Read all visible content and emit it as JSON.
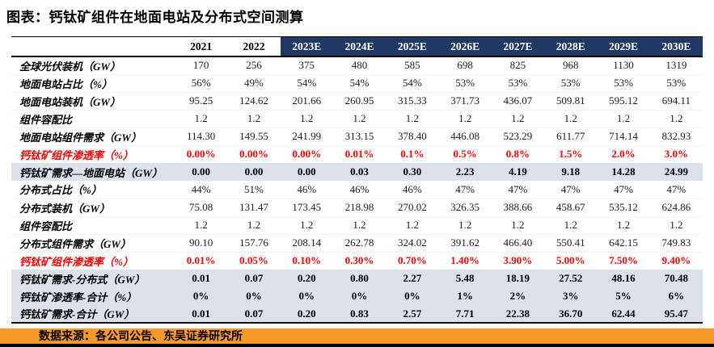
{
  "title": "图表：钙钛矿组件在地面电站及分布式空间测算",
  "source": {
    "text": "数据来源：各公司公告、东吴证券研究所"
  },
  "colors": {
    "header_navy": "#1F3864",
    "red": "#FF0000",
    "highlight_row_bg": "#DCE1EA",
    "source_bar_orange": "#F8992B"
  },
  "table": {
    "columns": [
      "2021",
      "2022",
      "2023E",
      "2024E",
      "2025E",
      "2026E",
      "2027E",
      "2028E",
      "2029E",
      "2030E"
    ],
    "navy_columns_start_index": 2,
    "rows": [
      {
        "label": "全球光伏装机（GW）",
        "style": "normal",
        "values": [
          "170",
          "256",
          "375",
          "480",
          "585",
          "698",
          "825",
          "968",
          "1130",
          "1319"
        ]
      },
      {
        "label": "地面电站占比（%）",
        "style": "normal",
        "values": [
          "56%",
          "49%",
          "54%",
          "54%",
          "54%",
          "53%",
          "53%",
          "53%",
          "53%",
          "53%"
        ]
      },
      {
        "label": "地面电站装机（GW）",
        "style": "normal",
        "values": [
          "95.25",
          "124.62",
          "201.66",
          "260.95",
          "315.33",
          "371.73",
          "436.07",
          "509.81",
          "595.12",
          "694.11"
        ]
      },
      {
        "label": "组件容配比",
        "style": "normal",
        "values": [
          "1.2",
          "1.2",
          "1.2",
          "1.2",
          "1.2",
          "1.2",
          "1.2",
          "1.2",
          "1.2",
          "1.2"
        ]
      },
      {
        "label": "地面电站组件需求（GW）",
        "style": "normal",
        "values": [
          "114.30",
          "149.55",
          "241.99",
          "313.15",
          "378.40",
          "446.08",
          "523.29",
          "611.77",
          "714.14",
          "832.93"
        ]
      },
      {
        "label": "钙钛矿组件渗透率（%）",
        "style": "red",
        "values": [
          "0.00%",
          "0.00%",
          "0.00%",
          "0.01%",
          "0.1%",
          "0.5%",
          "0.8%",
          "1.5%",
          "2.0%",
          "3.0%"
        ]
      },
      {
        "label": "钙钛矿需求—地面电站（GW）",
        "style": "highlight",
        "values": [
          "0.00",
          "0.00",
          "0.00",
          "0.03",
          "0.30",
          "2.23",
          "4.19",
          "9.18",
          "14.28",
          "24.99"
        ]
      },
      {
        "label": "分布式占比（%）",
        "style": "normal",
        "values": [
          "44%",
          "51%",
          "46%",
          "46%",
          "46%",
          "47%",
          "47%",
          "47%",
          "47%",
          "47%"
        ]
      },
      {
        "label": "分布式装机（GW）",
        "style": "normal",
        "values": [
          "75.08",
          "131.47",
          "173.45",
          "218.98",
          "270.02",
          "326.35",
          "388.66",
          "458.67",
          "535.12",
          "624.86"
        ]
      },
      {
        "label": "组件容配比",
        "style": "normal",
        "values": [
          "1.2",
          "1.2",
          "1.2",
          "1.2",
          "1.2",
          "1.2",
          "1.2",
          "1.2",
          "1.2",
          "1.2"
        ]
      },
      {
        "label": "分布式组件需求（GW）",
        "style": "normal",
        "values": [
          "90.10",
          "157.76",
          "208.14",
          "262.78",
          "324.02",
          "391.62",
          "466.40",
          "550.41",
          "642.15",
          "749.83"
        ]
      },
      {
        "label": "钙钛矿组件渗透率（%）",
        "style": "red",
        "values": [
          "0.01%",
          "0.05%",
          "0.10%",
          "0.30%",
          "0.70%",
          "1.40%",
          "3.90%",
          "5.00%",
          "7.50%",
          "9.40%"
        ]
      },
      {
        "label": "钙钛矿需求-分布式（GW）",
        "style": "highlight",
        "values": [
          "0.01",
          "0.07",
          "0.20",
          "0.80",
          "2.27",
          "5.48",
          "18.19",
          "27.52",
          "48.16",
          "70.48"
        ]
      },
      {
        "label": "钙钛矿渗透率-合计（%）",
        "style": "highlight",
        "values": [
          "0%",
          "0%",
          "0%",
          "0%",
          "0%",
          "1%",
          "2%",
          "3%",
          "5%",
          "6%"
        ]
      },
      {
        "label": "钙钛矿需求-合计（GW）",
        "style": "highlight",
        "values": [
          "0.01",
          "0.07",
          "0.20",
          "0.83",
          "2.57",
          "7.71",
          "22.38",
          "36.70",
          "62.44",
          "95.47"
        ]
      }
    ]
  }
}
